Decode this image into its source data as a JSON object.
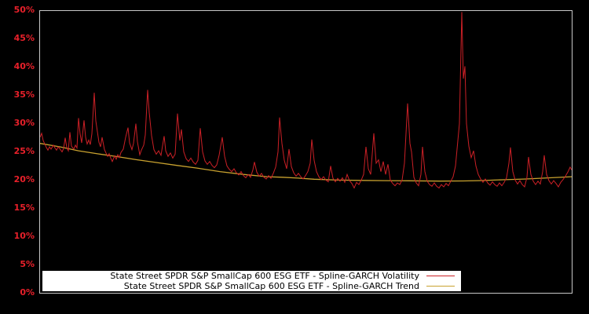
{
  "chart_data": {
    "type": "line",
    "title": "",
    "x_axis": {
      "labels_visible": false,
      "domain": [
        0,
        677
      ],
      "note": "no x tick labels shown in chart"
    },
    "y_axis": {
      "min": 0,
      "max": 50,
      "tick_step": 5,
      "unit": "%",
      "tick_labels": [
        "0%",
        "5%",
        "10%",
        "15%",
        "20%",
        "25%",
        "30%",
        "35%",
        "40%",
        "45%",
        "50%"
      ],
      "tick_color": "#e8202a"
    },
    "plot": {
      "background": "#000000",
      "border_color": "#c8c8c8",
      "grid": false
    },
    "legend": {
      "position": "bottom-left-inside",
      "background": "#ffffff",
      "text_color": "#000000"
    },
    "series": [
      {
        "name": "State Street SPDR S&P SmallCap 600 ESG ETF - Spline-GARCH Volatility",
        "color": "#cb2026",
        "points": [
          [
            0,
            27.6
          ],
          [
            2,
            28.3
          ],
          [
            4,
            27.0
          ],
          [
            6,
            26.4
          ],
          [
            8,
            25.8
          ],
          [
            10,
            25.3
          ],
          [
            12,
            25.9
          ],
          [
            14,
            25.5
          ],
          [
            17,
            26.2
          ],
          [
            19,
            25.7
          ],
          [
            21,
            25.3
          ],
          [
            23,
            25.9
          ],
          [
            26,
            25.4
          ],
          [
            28,
            25.0
          ],
          [
            30,
            25.6
          ],
          [
            32,
            27.5
          ],
          [
            34,
            25.8
          ],
          [
            36,
            25.2
          ],
          [
            38,
            28.5
          ],
          [
            40,
            26.0
          ],
          [
            43,
            25.5
          ],
          [
            45,
            26.2
          ],
          [
            47,
            25.7
          ],
          [
            49,
            31.0
          ],
          [
            51,
            28.2
          ],
          [
            53,
            26.6
          ],
          [
            56,
            30.6
          ],
          [
            58,
            27.6
          ],
          [
            60,
            26.4
          ],
          [
            62,
            27.1
          ],
          [
            64,
            26.3
          ],
          [
            66,
            28.2
          ],
          [
            69,
            35.5
          ],
          [
            71,
            30.5
          ],
          [
            73,
            28.6
          ],
          [
            75,
            26.7
          ],
          [
            77,
            25.9
          ],
          [
            79,
            27.6
          ],
          [
            82,
            25.4
          ],
          [
            84,
            24.8
          ],
          [
            86,
            24.2
          ],
          [
            88,
            24.7
          ],
          [
            90,
            23.9
          ],
          [
            92,
            23.3
          ],
          [
            95,
            24.3
          ],
          [
            97,
            23.7
          ],
          [
            99,
            24.5
          ],
          [
            101,
            24.0
          ],
          [
            103,
            24.9
          ],
          [
            106,
            25.5
          ],
          [
            109,
            27.6
          ],
          [
            112,
            29.3
          ],
          [
            114,
            26.6
          ],
          [
            117,
            25.4
          ],
          [
            119,
            26.5
          ],
          [
            122,
            30.0
          ],
          [
            124,
            26.8
          ],
          [
            127,
            24.5
          ],
          [
            129,
            25.3
          ],
          [
            132,
            26.2
          ],
          [
            134,
            28.0
          ],
          [
            137,
            36.0
          ],
          [
            139,
            32.0
          ],
          [
            142,
            27.9
          ],
          [
            145,
            25.4
          ],
          [
            148,
            24.6
          ],
          [
            151,
            25.2
          ],
          [
            154,
            24.4
          ],
          [
            158,
            27.8
          ],
          [
            160,
            25.2
          ],
          [
            163,
            24.2
          ],
          [
            166,
            24.8
          ],
          [
            169,
            23.9
          ],
          [
            172,
            24.6
          ],
          [
            175,
            31.8
          ],
          [
            178,
            27.0
          ],
          [
            180,
            29.0
          ],
          [
            183,
            25.0
          ],
          [
            186,
            23.8
          ],
          [
            189,
            23.3
          ],
          [
            192,
            23.9
          ],
          [
            195,
            23.2
          ],
          [
            198,
            22.8
          ],
          [
            201,
            23.5
          ],
          [
            204,
            29.2
          ],
          [
            207,
            25.0
          ],
          [
            210,
            23.4
          ],
          [
            213,
            22.8
          ],
          [
            216,
            23.3
          ],
          [
            219,
            22.6
          ],
          [
            222,
            22.2
          ],
          [
            225,
            22.7
          ],
          [
            228,
            24.4
          ],
          [
            232,
            27.6
          ],
          [
            235,
            24.2
          ],
          [
            238,
            22.5
          ],
          [
            241,
            21.9
          ],
          [
            244,
            21.5
          ],
          [
            247,
            22.0
          ],
          [
            250,
            21.3
          ],
          [
            253,
            20.9
          ],
          [
            256,
            21.5
          ],
          [
            259,
            20.8
          ],
          [
            262,
            20.4
          ],
          [
            265,
            21.0
          ],
          [
            268,
            20.5
          ],
          [
            271,
            21.8
          ],
          [
            273,
            23.2
          ],
          [
            276,
            21.4
          ],
          [
            279,
            20.7
          ],
          [
            282,
            21.2
          ],
          [
            285,
            20.5
          ],
          [
            288,
            20.2
          ],
          [
            291,
            20.8
          ],
          [
            294,
            20.3
          ],
          [
            297,
            21.2
          ],
          [
            300,
            22.3
          ],
          [
            303,
            25.0
          ],
          [
            305,
            31.1
          ],
          [
            308,
            26.5
          ],
          [
            311,
            23.5
          ],
          [
            314,
            22.0
          ],
          [
            317,
            25.5
          ],
          [
            320,
            22.4
          ],
          [
            323,
            21.3
          ],
          [
            326,
            20.7
          ],
          [
            329,
            21.2
          ],
          [
            332,
            20.6
          ],
          [
            335,
            20.2
          ],
          [
            338,
            20.8
          ],
          [
            341,
            21.5
          ],
          [
            344,
            23.0
          ],
          [
            346,
            27.2
          ],
          [
            349,
            23.5
          ],
          [
            352,
            21.5
          ],
          [
            355,
            20.6
          ],
          [
            358,
            20.1
          ],
          [
            361,
            20.6
          ],
          [
            364,
            20.0
          ],
          [
            367,
            19.7
          ],
          [
            370,
            22.5
          ],
          [
            373,
            20.3
          ],
          [
            376,
            19.7
          ],
          [
            379,
            20.3
          ],
          [
            382,
            19.8
          ],
          [
            385,
            20.4
          ],
          [
            388,
            19.6
          ],
          [
            391,
            21.0
          ],
          [
            394,
            19.9
          ],
          [
            397,
            19.4
          ],
          [
            400,
            18.6
          ],
          [
            403,
            19.6
          ],
          [
            406,
            19.2
          ],
          [
            409,
            20.0
          ],
          [
            412,
            21.0
          ],
          [
            415,
            25.9
          ],
          [
            418,
            22.0
          ],
          [
            421,
            21.0
          ],
          [
            425,
            28.3
          ],
          [
            428,
            23.0
          ],
          [
            431,
            23.6
          ],
          [
            434,
            21.5
          ],
          [
            437,
            23.3
          ],
          [
            440,
            21.0
          ],
          [
            443,
            22.8
          ],
          [
            446,
            20.0
          ],
          [
            449,
            19.4
          ],
          [
            452,
            19.0
          ],
          [
            455,
            19.5
          ],
          [
            458,
            19.2
          ],
          [
            461,
            20.0
          ],
          [
            464,
            23.0
          ],
          [
            468,
            33.6
          ],
          [
            471,
            26.5
          ],
          [
            473,
            25.0
          ],
          [
            476,
            20.5
          ],
          [
            479,
            19.5
          ],
          [
            482,
            19.0
          ],
          [
            485,
            21.0
          ],
          [
            487,
            25.9
          ],
          [
            490,
            21.5
          ],
          [
            493,
            19.8
          ],
          [
            496,
            19.2
          ],
          [
            499,
            18.9
          ],
          [
            502,
            19.5
          ],
          [
            505,
            18.9
          ],
          [
            508,
            18.6
          ],
          [
            511,
            19.2
          ],
          [
            514,
            18.8
          ],
          [
            517,
            19.4
          ],
          [
            520,
            19.0
          ],
          [
            523,
            19.8
          ],
          [
            526,
            20.6
          ],
          [
            529,
            22.5
          ],
          [
            532,
            27.0
          ],
          [
            534,
            30.0
          ],
          [
            537,
            49.8
          ],
          [
            539,
            38.0
          ],
          [
            541,
            40.2
          ],
          [
            543,
            30.0
          ],
          [
            546,
            26.0
          ],
          [
            549,
            24.0
          ],
          [
            552,
            25.2
          ],
          [
            555,
            22.5
          ],
          [
            558,
            21.0
          ],
          [
            561,
            20.2
          ],
          [
            564,
            19.6
          ],
          [
            567,
            20.2
          ],
          [
            570,
            19.5
          ],
          [
            573,
            19.1
          ],
          [
            576,
            19.7
          ],
          [
            579,
            19.2
          ],
          [
            582,
            18.9
          ],
          [
            585,
            19.5
          ],
          [
            588,
            19.0
          ],
          [
            591,
            19.6
          ],
          [
            594,
            20.4
          ],
          [
            597,
            23.0
          ],
          [
            599,
            25.8
          ],
          [
            602,
            21.5
          ],
          [
            605,
            20.0
          ],
          [
            608,
            19.3
          ],
          [
            611,
            19.9
          ],
          [
            614,
            19.2
          ],
          [
            617,
            18.8
          ],
          [
            620,
            20.5
          ],
          [
            622,
            24.1
          ],
          [
            625,
            21.0
          ],
          [
            628,
            19.8
          ],
          [
            631,
            19.2
          ],
          [
            634,
            19.8
          ],
          [
            637,
            19.3
          ],
          [
            640,
            21.5
          ],
          [
            642,
            24.4
          ],
          [
            645,
            21.0
          ],
          [
            648,
            19.9
          ],
          [
            651,
            19.3
          ],
          [
            654,
            19.9
          ],
          [
            657,
            19.4
          ],
          [
            660,
            18.8
          ],
          [
            663,
            19.6
          ],
          [
            666,
            20.1
          ],
          [
            669,
            20.7
          ],
          [
            672,
            21.4
          ],
          [
            675,
            22.3
          ],
          [
            677,
            21.8
          ]
        ]
      },
      {
        "name": "State Street SPDR S&P SmallCap 600 ESG ETF - Spline-GARCH Trend",
        "color": "#c9a22f",
        "points": [
          [
            0,
            26.5
          ],
          [
            25,
            25.9
          ],
          [
            49,
            25.2
          ],
          [
            74,
            24.65
          ],
          [
            99,
            24.15
          ],
          [
            124,
            23.6
          ],
          [
            149,
            23.1
          ],
          [
            174,
            22.6
          ],
          [
            199,
            22.15
          ],
          [
            229,
            21.5
          ],
          [
            259,
            21.0
          ],
          [
            289,
            20.6
          ],
          [
            309,
            20.5
          ],
          [
            329,
            20.35
          ],
          [
            349,
            20.15
          ],
          [
            379,
            20.0
          ],
          [
            409,
            19.95
          ],
          [
            439,
            19.9
          ],
          [
            469,
            19.87
          ],
          [
            509,
            19.82
          ],
          [
            539,
            19.85
          ],
          [
            559,
            19.9
          ],
          [
            589,
            20.05
          ],
          [
            619,
            20.2
          ],
          [
            649,
            20.4
          ],
          [
            677,
            20.6
          ]
        ]
      }
    ]
  }
}
